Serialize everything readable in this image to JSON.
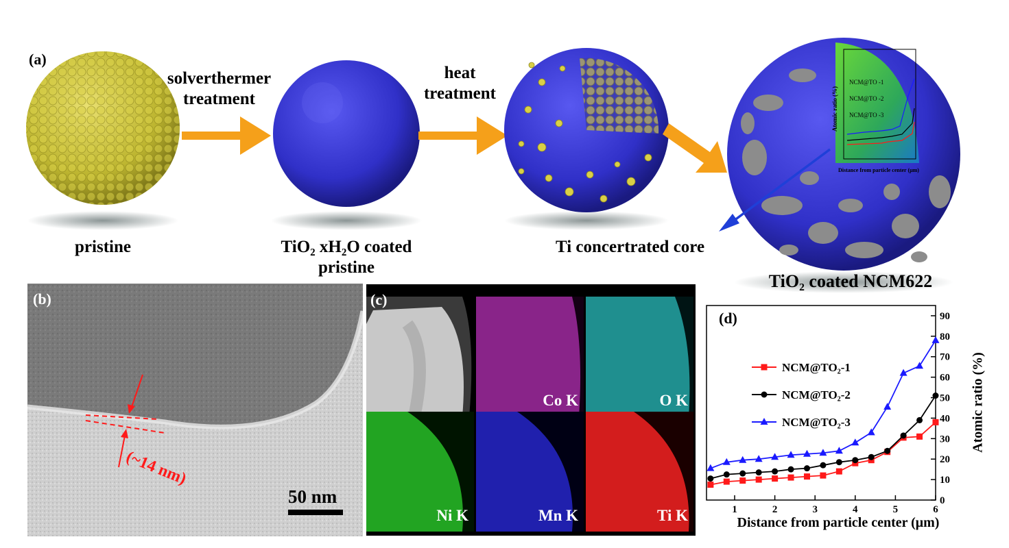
{
  "panel_a": {
    "letter": "(a)",
    "step1_label": "pristine",
    "arrow1_label_line1": "solverthermer",
    "arrow1_label_line2": "treatment",
    "step2_label_line1": "TiO₂ xH₂O coated",
    "step2_label_line2": "pristine",
    "arrow2_label_line1": "heat",
    "arrow2_label_line2": "treatment",
    "core_label": "Ti concertrated core",
    "final_label": "TiO₂ coated  NCM622",
    "colors": {
      "ncm": "#c9c23a",
      "tio2": "#3a3ad6",
      "arrow": "#f5a01a",
      "pointer": "#1f3fd8",
      "grey": "#8c8c8c"
    }
  },
  "panel_b": {
    "letter": "(b)",
    "thickness_label": "(~14 nm)",
    "scale_bar_label": "50 nm",
    "annotation_color": "#ff1a1a"
  },
  "panel_c": {
    "letter": "(c)",
    "maps": [
      {
        "label": "",
        "color": "#d8d8d8"
      },
      {
        "label": "Co K",
        "color": "#e040e0"
      },
      {
        "label": "O K",
        "color": "#30d8d8"
      },
      {
        "label": "Ni K",
        "color": "#30d830"
      },
      {
        "label": "Mn K",
        "color": "#2a2ad8"
      },
      {
        "label": "Ti K",
        "color": "#ff2020"
      }
    ]
  },
  "inset_chart": {
    "ylabel": "Atomic ratio (%)",
    "xlabel": "Distance from particle center (μm)",
    "series_names": [
      "NCM@TO -1",
      "NCM@TO -2",
      "NCM@TO -3"
    ]
  },
  "chart_data": {
    "type": "line",
    "panel_letter": "(d)",
    "xlabel": "Distance from particle center (μm)",
    "ylabel": "Atomic ratio (%)",
    "xlim": [
      0.3,
      6
    ],
    "ylim": [
      0,
      95
    ],
    "xticks": [
      1,
      2,
      3,
      4,
      5,
      6
    ],
    "yticks": [
      0,
      10,
      20,
      30,
      40,
      50,
      60,
      70,
      80,
      90
    ],
    "x": [
      0.4,
      0.8,
      1.2,
      1.6,
      2.0,
      2.4,
      2.8,
      3.2,
      3.6,
      4.0,
      4.4,
      4.8,
      5.2,
      5.6,
      6.0
    ],
    "series": [
      {
        "name": "NCM@TO₂-1",
        "color": "#ff1a1a",
        "marker": "square",
        "values": [
          7.5,
          9,
          9.5,
          10,
          10.5,
          11,
          11.5,
          12,
          14,
          18,
          19.5,
          23.5,
          30.5,
          31,
          38
        ]
      },
      {
        "name": "NCM@TO₂-2",
        "color": "#000000",
        "marker": "circle",
        "values": [
          10.5,
          12.5,
          13,
          13.5,
          14,
          15,
          15.5,
          17,
          18.5,
          19.5,
          21,
          24,
          31.5,
          39,
          51
        ]
      },
      {
        "name": "NCM@TO₂-3",
        "color": "#1a1aff",
        "marker": "triangle",
        "values": [
          15.5,
          18.5,
          19.5,
          20,
          21,
          22,
          22.5,
          23,
          24,
          28,
          33,
          45.5,
          62,
          65.5,
          78
        ]
      }
    ],
    "legend_position": "left-middle"
  }
}
